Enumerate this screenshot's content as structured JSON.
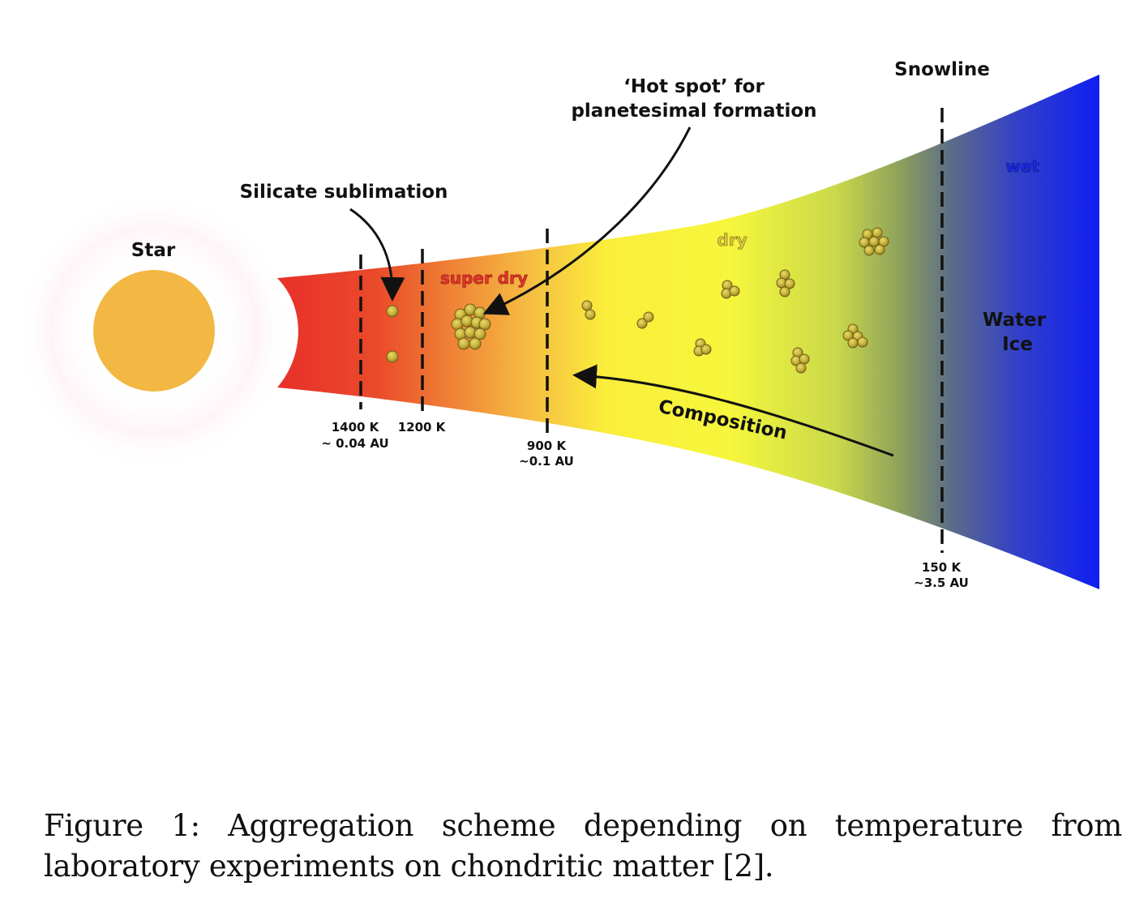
{
  "labels": {
    "star": "Star",
    "silicate": "Silicate sublimation",
    "hotspot_line1": "‘Hot spot’ for",
    "hotspot_line2": "planetesimal formation",
    "snowline": "Snowline",
    "super_dry": "super dry",
    "dry": "dry",
    "wet": "wet",
    "water": "Water",
    "ice": "Ice",
    "composition": "Composition"
  },
  "temperatures": [
    {
      "temp": "1400 K",
      "dist": "~ 0.04 AU"
    },
    {
      "temp": "1200 K",
      "dist": ""
    },
    {
      "temp": "900 K",
      "dist": "~0.1 AU"
    },
    {
      "temp": "150 K",
      "dist": "~3.5 AU"
    }
  ],
  "caption": "Figure 1: Aggregation scheme depending on temperature from laboratory experiments on chondritic matter [2].",
  "colors": {
    "star": "#f2b843",
    "hot": "#e8302a",
    "warm": "#f5b942",
    "dry": "#f8f53c",
    "cool": "#c5d94a",
    "wet": "#1020f0",
    "grain": "#c7b23b"
  }
}
